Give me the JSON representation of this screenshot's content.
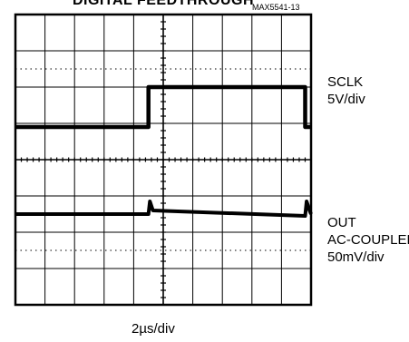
{
  "header": {
    "title": "DIGITAL FEEDTHROUGH",
    "part_number": "MAX5541-13"
  },
  "channels": {
    "sclk": {
      "name": "SCLK",
      "scale": "5V/div"
    },
    "out": {
      "name": "OUT",
      "coupling": "AC-COUPLED",
      "scale": "50mV/div"
    }
  },
  "timebase": "2µs/div",
  "chart_data": {
    "type": "line",
    "title": "DIGITAL FEEDTHROUGH",
    "xlabel": "2µs/div",
    "ylabel": "",
    "grid": true,
    "x_divisions": 10,
    "y_divisions": 8,
    "xlim": [
      0,
      10
    ],
    "ylim": [
      -4,
      4
    ],
    "series": [
      {
        "name": "SCLK",
        "scale": "5V/div",
        "points": [
          [
            0,
            0.9
          ],
          [
            4.5,
            0.9
          ],
          [
            4.5,
            2.0
          ],
          [
            9.8,
            2.0
          ],
          [
            9.8,
            0.9
          ],
          [
            10,
            0.9
          ]
        ]
      },
      {
        "name": "OUT",
        "scale": "50mV/div",
        "points": [
          [
            0,
            -1.5
          ],
          [
            4.5,
            -1.5
          ],
          [
            4.55,
            -1.15
          ],
          [
            4.65,
            -1.4
          ],
          [
            9.8,
            -1.55
          ],
          [
            9.85,
            -1.15
          ],
          [
            9.95,
            -1.4
          ],
          [
            10,
            -1.5
          ]
        ]
      }
    ],
    "edges": [
      2.2,
      4.5,
      7.4,
      9.8
    ]
  }
}
